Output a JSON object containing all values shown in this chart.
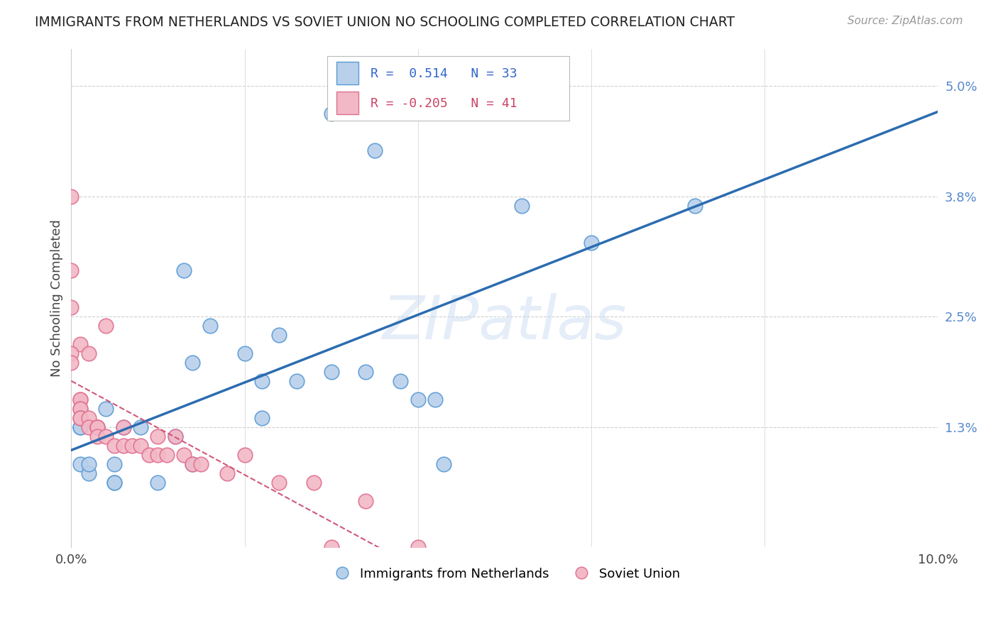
{
  "title": "IMMIGRANTS FROM NETHERLANDS VS SOVIET UNION NO SCHOOLING COMPLETED CORRELATION CHART",
  "source": "Source: ZipAtlas.com",
  "ylabel": "No Schooling Completed",
  "ytick_vals": [
    0.013,
    0.025,
    0.038,
    0.05
  ],
  "ytick_labels": [
    "1.3%",
    "2.5%",
    "3.8%",
    "5.0%"
  ],
  "xlim": [
    0.0,
    0.1
  ],
  "ylim": [
    0.0,
    0.054
  ],
  "netherlands_R": 0.514,
  "netherlands_N": 33,
  "soviet_R": -0.205,
  "soviet_N": 41,
  "netherlands_fill": "#b8d0ea",
  "netherlands_edge": "#5b9bd5",
  "netherlands_line": "#2b6cb0",
  "soviet_fill": "#f2b8c6",
  "soviet_edge": "#e07090",
  "soviet_line": "#d05878",
  "netherlands_x": [
    0.03,
    0.035,
    0.001,
    0.013,
    0.016,
    0.02,
    0.024,
    0.014,
    0.022,
    0.001,
    0.004,
    0.008,
    0.001,
    0.012,
    0.026,
    0.022,
    0.034,
    0.03,
    0.04,
    0.043,
    0.005,
    0.014,
    0.052,
    0.06,
    0.002,
    0.006,
    0.005,
    0.038,
    0.042,
    0.072,
    0.002,
    0.005,
    0.01
  ],
  "netherlands_y": [
    0.047,
    0.043,
    0.013,
    0.03,
    0.024,
    0.021,
    0.023,
    0.02,
    0.018,
    0.013,
    0.015,
    0.013,
    0.009,
    0.012,
    0.018,
    0.014,
    0.019,
    0.019,
    0.016,
    0.009,
    0.009,
    0.009,
    0.037,
    0.033,
    0.008,
    0.013,
    0.007,
    0.018,
    0.016,
    0.037,
    0.009,
    0.007,
    0.007
  ],
  "soviet_x": [
    0.0,
    0.0,
    0.004,
    0.0,
    0.001,
    0.0,
    0.002,
    0.0,
    0.001,
    0.001,
    0.001,
    0.001,
    0.001,
    0.001,
    0.002,
    0.002,
    0.003,
    0.003,
    0.003,
    0.003,
    0.004,
    0.005,
    0.006,
    0.006,
    0.007,
    0.008,
    0.009,
    0.01,
    0.01,
    0.011,
    0.012,
    0.013,
    0.014,
    0.015,
    0.018,
    0.02,
    0.024,
    0.028,
    0.03,
    0.034,
    0.04
  ],
  "soviet_y": [
    0.038,
    0.03,
    0.024,
    0.026,
    0.022,
    0.021,
    0.021,
    0.02,
    0.016,
    0.016,
    0.015,
    0.015,
    0.014,
    0.014,
    0.014,
    0.013,
    0.013,
    0.013,
    0.013,
    0.012,
    0.012,
    0.011,
    0.011,
    0.013,
    0.011,
    0.011,
    0.01,
    0.012,
    0.01,
    0.01,
    0.012,
    0.01,
    0.009,
    0.009,
    0.008,
    0.01,
    0.007,
    0.007,
    0.0,
    0.005,
    0.0
  ],
  "watermark": "ZIPatlas",
  "background_color": "#ffffff",
  "grid_color": "#d0d0d0"
}
